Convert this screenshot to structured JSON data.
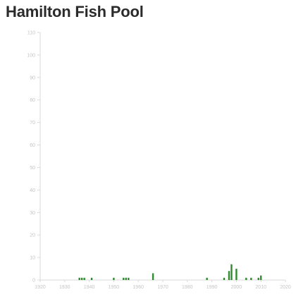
{
  "title": "Hamilton Fish Pool",
  "colors": {
    "bar": "#2e8b2e",
    "axis": "#d9d9d9",
    "tick_text": "#c4c4c4",
    "title": "#2b2b2b"
  },
  "chart_data": {
    "type": "bar",
    "title": "Hamilton Fish Pool",
    "xlabel": "",
    "ylabel": "",
    "xlim": [
      1920,
      2020
    ],
    "ylim": [
      0,
      110
    ],
    "x_ticks": [
      1920,
      1930,
      1940,
      1950,
      1960,
      1970,
      1980,
      1990,
      2000,
      2010,
      2020
    ],
    "y_ticks": [
      0,
      10,
      20,
      30,
      40,
      50,
      60,
      70,
      80,
      90,
      100,
      110
    ],
    "grid": false,
    "x": [
      1936,
      1937,
      1938,
      1941,
      1950,
      1954,
      1955,
      1956,
      1966,
      1988,
      1995,
      1997,
      1998,
      2000,
      2004,
      2006,
      2009,
      2010
    ],
    "values": [
      1,
      1,
      1,
      1,
      1,
      1,
      1,
      1,
      3,
      1,
      1,
      4,
      7,
      5,
      1,
      1,
      1,
      2
    ]
  }
}
